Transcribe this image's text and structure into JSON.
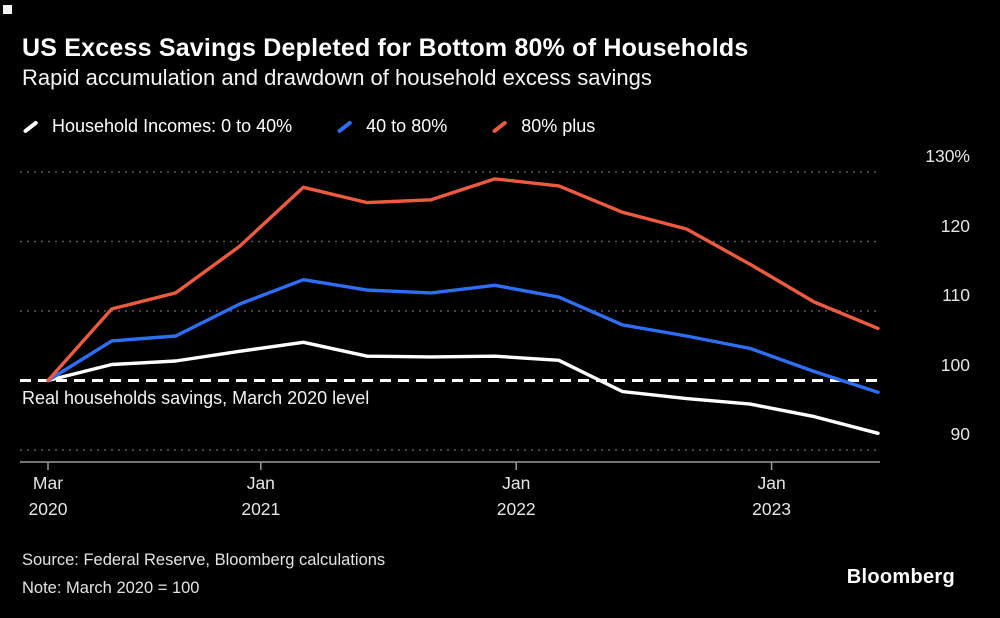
{
  "page": {
    "background": "#000000"
  },
  "colors": {
    "grid": "#5a5a5a",
    "axis": "#9a9a9a",
    "tick_text": "#e6e6e6",
    "reference": "#ffffff"
  },
  "chart_data": {
    "type": "line",
    "title": "US Excess Savings Depleted for Bottom 80% of Households",
    "subtitle": "Rapid accumulation and drawdown of household excess savings",
    "background": "#000000",
    "grid": "dotted horizontal",
    "legend_position": "top",
    "ylim": [
      88,
      132
    ],
    "x_dates": [
      "Mar 2020",
      "Jun 2020",
      "Sep 2020",
      "Dec 2020",
      "Mar 2021",
      "Jun 2021",
      "Sep 2021",
      "Dec 2021",
      "Mar 2022",
      "Jun 2022",
      "Sep 2022",
      "Dec 2022",
      "Mar 2023",
      "Jun 2023"
    ],
    "x_months": [
      0,
      3,
      6,
      9,
      12,
      15,
      18,
      21,
      24,
      27,
      30,
      33,
      36,
      39
    ],
    "series": [
      {
        "name": "Household Incomes: 0 to 40%",
        "color": "#ffffff",
        "values": [
          100,
          102.3,
          102.8,
          104.2,
          105.5,
          103.5,
          103.4,
          103.5,
          102.9,
          98.4,
          97.4,
          96.6,
          94.8,
          92.4
        ]
      },
      {
        "name": "40 to 80%",
        "color": "#2e6ef5",
        "values": [
          100,
          105.7,
          106.4,
          111,
          114.5,
          113,
          112.6,
          113.7,
          112,
          108,
          106.4,
          104.6,
          101.3,
          98.3
        ]
      },
      {
        "name": "80% plus",
        "color": "#ec5b3f",
        "values": [
          100,
          110.3,
          112.6,
          119.3,
          127.8,
          125.6,
          126,
          129,
          128,
          124.2,
          121.8,
          116.7,
          111.3,
          107.5
        ]
      }
    ],
    "yticks": [
      {
        "value": 130,
        "label": "130%"
      },
      {
        "value": 120,
        "label": "120"
      },
      {
        "value": 110,
        "label": "110"
      },
      {
        "value": 100,
        "label": "100"
      },
      {
        "value": 90,
        "label": "90"
      }
    ],
    "xticks": [
      {
        "t": 0,
        "line1": "Mar",
        "line2": "2020"
      },
      {
        "t": 10,
        "line1": "Jan",
        "line2": "2021"
      },
      {
        "t": 22,
        "line1": "Jan",
        "line2": "2022"
      },
      {
        "t": 34,
        "line1": "Jan",
        "line2": "2023"
      }
    ],
    "reference_line": {
      "value": 100,
      "style": "dashed",
      "color": "#ffffff",
      "label": "Real households savings, March 2020 level"
    }
  },
  "footer": {
    "source": "Source: Federal Reserve, Bloomberg calculations",
    "note": "Note: March 2020 = 100",
    "brand": "Bloomberg"
  }
}
